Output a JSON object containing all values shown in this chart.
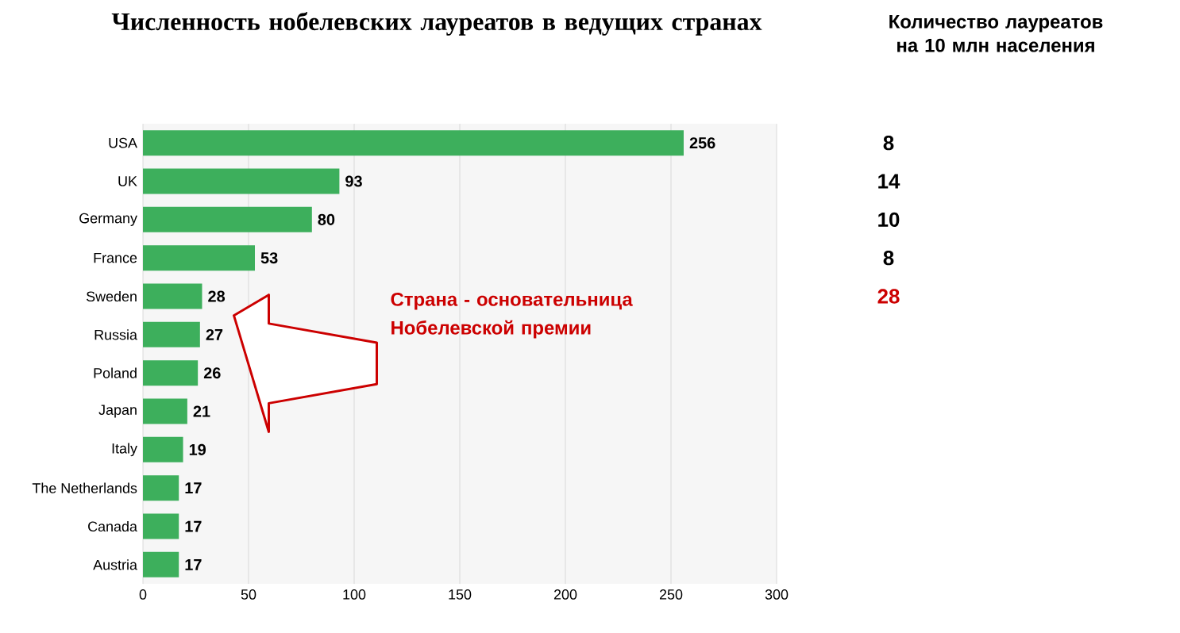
{
  "chart_data": {
    "type": "bar",
    "orientation": "horizontal",
    "title": "Численность нобелевских лауреатов в ведущих странах",
    "categories": [
      "USA",
      "UK",
      "Germany",
      "France",
      "Sweden",
      "Russia",
      "Poland",
      "Japan",
      "Italy",
      "The Netherlands",
      "Canada",
      "Austria"
    ],
    "values": [
      256,
      93,
      80,
      53,
      28,
      27,
      26,
      21,
      19,
      17,
      17,
      17
    ],
    "color": "#3daf5c",
    "xlim": [
      0,
      300
    ],
    "xticks": [
      0,
      50,
      100,
      150,
      200,
      250,
      300
    ],
    "grid": "x",
    "data_labels": true,
    "annotations": [
      "Количество лауреатов на 10 млн населения",
      "8",
      "14",
      "10",
      "8",
      "28",
      "Страна - основательница Нобелевской премии"
    ]
  }
}
